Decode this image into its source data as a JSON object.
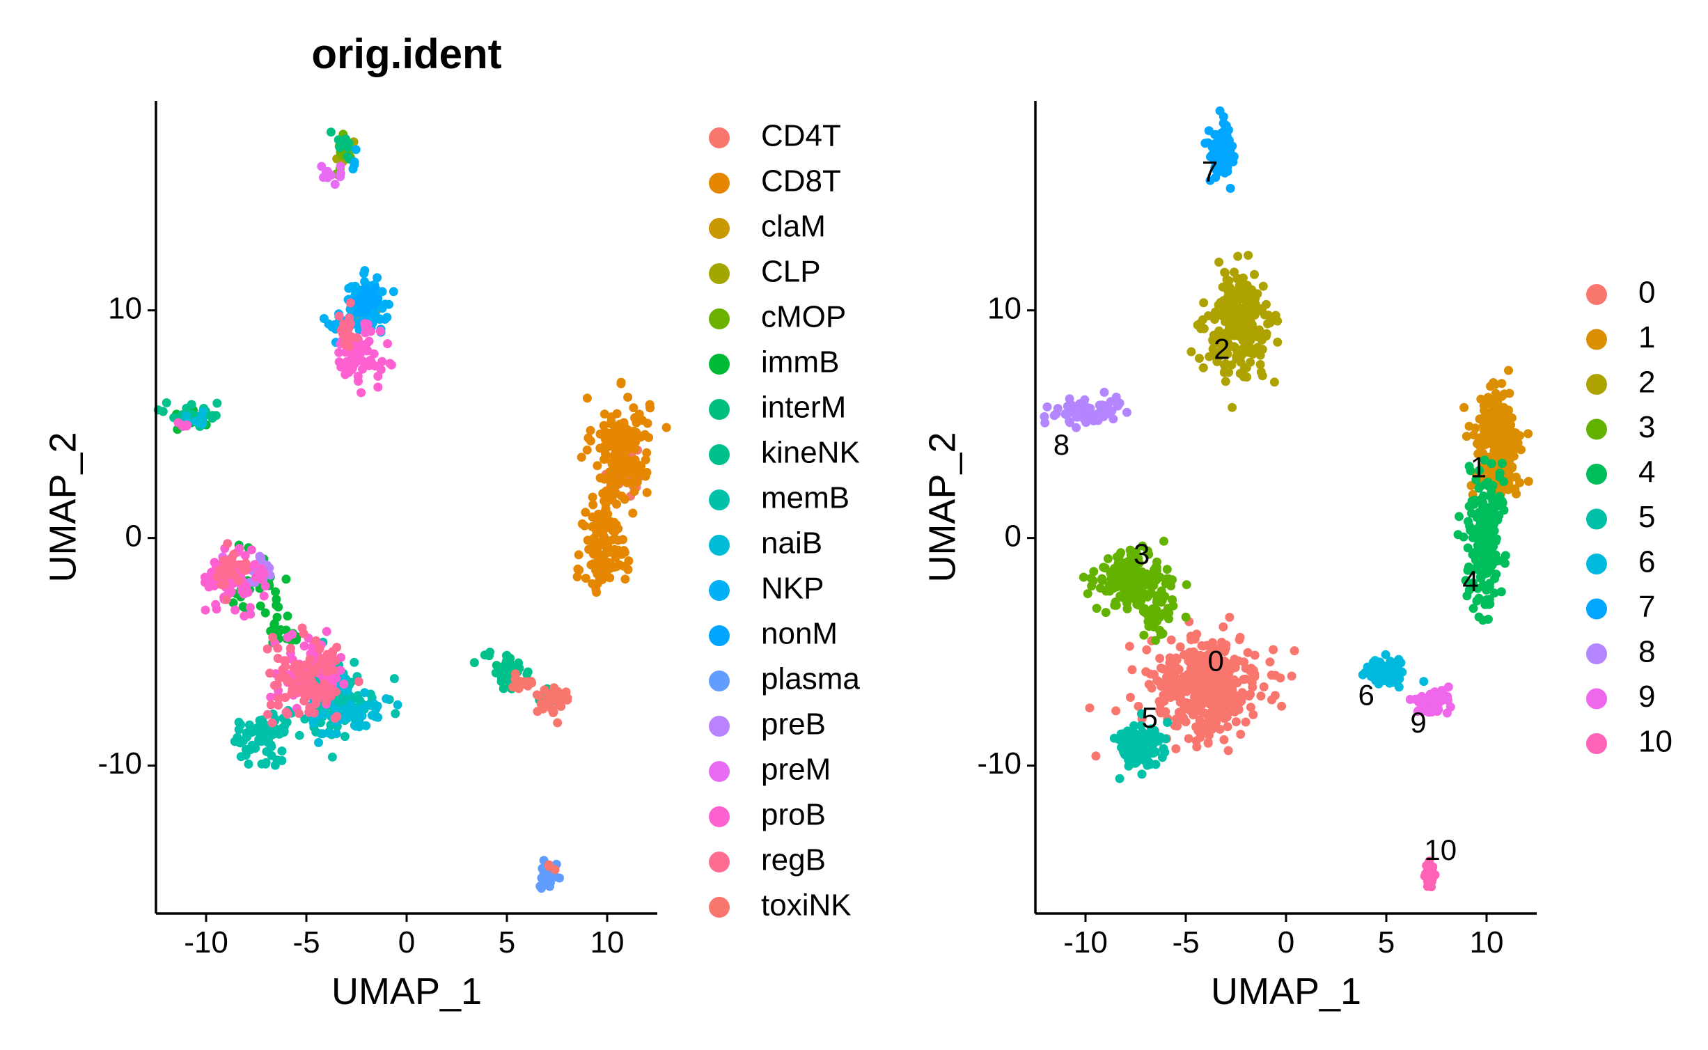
{
  "chart_data": [
    {
      "type": "scatter",
      "title": "orig.ident",
      "xlabel": "UMAP_1",
      "ylabel": "UMAP_2",
      "xlim": [
        -12.5,
        12.5
      ],
      "ylim": [
        -16.5,
        19.2
      ],
      "xticks": [
        "-10",
        "-5",
        "0",
        "5",
        "10"
      ],
      "yticks": [
        "-10",
        "0",
        "10"
      ],
      "legend": "right",
      "grid": false,
      "series": [
        {
          "name": "CD4T",
          "color": "#F8766D",
          "clusters": [
            [
              11,
              3,
              0.5,
              0.6,
              30
            ]
          ]
        },
        {
          "name": "CD8T",
          "color": "#E58700",
          "clusters": [
            [
              10.7,
              4.0,
              0.7,
              1.1,
              160
            ],
            [
              10.0,
              0.5,
              0.5,
              1.1,
              80
            ],
            [
              9.8,
              -1.2,
              0.5,
              0.6,
              50
            ]
          ]
        },
        {
          "name": "claM",
          "color": "#C99800",
          "clusters": [
            [
              -2.0,
              10.0,
              0.4,
              0.4,
              15
            ]
          ]
        },
        {
          "name": "CLP",
          "color": "#A3A500",
          "clusters": [
            [
              -3.0,
              17.0,
              0.3,
              0.3,
              8
            ]
          ]
        },
        {
          "name": "cMOP",
          "color": "#6BB100",
          "clusters": [
            [
              -3.2,
              16.8,
              0.3,
              0.5,
              10
            ]
          ]
        },
        {
          "name": "immB",
          "color": "#00BA38",
          "clusters": [
            [
              -7.5,
              -2.0,
              0.8,
              0.6,
              30
            ],
            [
              -6.0,
              -4.0,
              0.5,
              0.5,
              20
            ],
            [
              -10.5,
              5.3,
              0.6,
              0.3,
              10
            ]
          ]
        },
        {
          "name": "interM",
          "color": "#00BF7D",
          "clusters": [
            [
              -3.0,
              17.2,
              0.3,
              0.4,
              10
            ],
            [
              5.0,
              -5.6,
              0.3,
              0.2,
              6
            ]
          ]
        },
        {
          "name": "kineNK",
          "color": "#00C08B",
          "clusters": [
            [
              5.0,
              -5.9,
              0.6,
              0.4,
              40
            ],
            [
              7.0,
              -6.9,
              0.3,
              0.2,
              6
            ],
            [
              -10.5,
              5.4,
              0.8,
              0.3,
              25
            ]
          ]
        },
        {
          "name": "memB",
          "color": "#00C1AA",
          "clusters": [
            [
              -3.5,
              -7.0,
              1.0,
              0.8,
              110
            ],
            [
              -7.5,
              -9.0,
              0.6,
              0.5,
              50
            ],
            [
              -6.5,
              -8.2,
              0.5,
              0.4,
              30
            ]
          ]
        },
        {
          "name": "naiB",
          "color": "#00BCD8",
          "clusters": [
            [
              -3.0,
              -7.5,
              0.9,
              0.6,
              60
            ],
            [
              -10.5,
              5.2,
              0.4,
              0.2,
              10
            ]
          ]
        },
        {
          "name": "NKP",
          "color": "#00B0F6",
          "clusters": [
            [
              -2.0,
              10.2,
              0.6,
              0.6,
              100
            ],
            [
              -3.5,
              9.3,
              0.3,
              0.3,
              15
            ],
            [
              -2.6,
              16.5,
              0.2,
              0.2,
              4
            ]
          ]
        },
        {
          "name": "nonM",
          "color": "#00A5FF",
          "clusters": [
            [
              -2.0,
              10.5,
              0.4,
              0.3,
              30
            ]
          ]
        },
        {
          "name": "plasma",
          "color": "#619CFF",
          "clusters": [
            [
              7.1,
              -14.9,
              0.2,
              0.3,
              25
            ]
          ]
        },
        {
          "name": "preB",
          "color": "#B983FF",
          "clusters": [
            [
              -7.5,
              -1.5,
              0.5,
              0.4,
              20
            ]
          ]
        },
        {
          "name": "preM",
          "color": "#E76BF3",
          "clusters": [
            [
              -3.9,
              16.0,
              0.4,
              0.3,
              10
            ],
            [
              -9.0,
              -1.5,
              0.4,
              0.4,
              10
            ]
          ]
        },
        {
          "name": "proB",
          "color": "#FD61D1",
          "clusters": [
            [
              -2.5,
              8.0,
              0.6,
              0.6,
              70
            ],
            [
              -8.5,
              -1.8,
              0.7,
              0.6,
              80
            ],
            [
              -4.8,
              -5.8,
              0.8,
              0.7,
              90
            ],
            [
              -11.0,
              5.0,
              0.2,
              0.1,
              5
            ]
          ]
        },
        {
          "name": "regB",
          "color": "#FF6C91",
          "clusters": [
            [
              -5.0,
              -6.3,
              1.0,
              0.9,
              100
            ],
            [
              -8.8,
              -1.5,
              0.4,
              0.4,
              30
            ],
            [
              -3.0,
              9.0,
              0.3,
              0.4,
              20
            ]
          ]
        },
        {
          "name": "toxiNK",
          "color": "#F8766D",
          "clusters": [
            [
              7.3,
              -7.2,
              0.4,
              0.3,
              40
            ],
            [
              5.7,
              -6.3,
              0.4,
              0.2,
              15
            ],
            [
              7.2,
              -14.5,
              0.1,
              0.1,
              3
            ]
          ]
        }
      ]
    },
    {
      "type": "scatter",
      "title": "",
      "xlabel": "UMAP_1",
      "ylabel": "UMAP_2",
      "xlim": [
        -12.5,
        12.5
      ],
      "ylim": [
        -16.5,
        19.2
      ],
      "xticks": [
        "-10",
        "-5",
        "0",
        "5",
        "10"
      ],
      "yticks": [
        "-10",
        "0",
        "10"
      ],
      "legend": "right",
      "grid": false,
      "series": [
        {
          "name": "0",
          "color": "#F8766D",
          "label_at": [
            -3.5,
            -5.5
          ],
          "clusters": [
            [
              -4.0,
              -6.5,
              1.4,
              1.1,
              380
            ]
          ]
        },
        {
          "name": "1",
          "color": "#DB8E00",
          "label_at": [
            9.6,
            3.0
          ],
          "clusters": [
            [
              10.5,
              4.0,
              0.6,
              1.3,
              260
            ]
          ]
        },
        {
          "name": "2",
          "color": "#AEA200",
          "label_at": [
            -3.2,
            8.2
          ],
          "clusters": [
            [
              -2.3,
              9.3,
              0.8,
              1.1,
              240
            ]
          ]
        },
        {
          "name": "3",
          "color": "#64B200",
          "label_at": [
            -7.2,
            -0.8
          ],
          "clusters": [
            [
              -7.8,
              -1.8,
              0.9,
              0.6,
              160
            ],
            [
              -6.3,
              -3.3,
              0.5,
              0.5,
              40
            ]
          ]
        },
        {
          "name": "4",
          "color": "#00BD5C",
          "label_at": [
            9.2,
            -2.0
          ],
          "clusters": [
            [
              9.9,
              0.0,
              0.4,
              1.6,
              200
            ]
          ]
        },
        {
          "name": "5",
          "color": "#00C1A7",
          "label_at": [
            -6.8,
            -8.0
          ],
          "clusters": [
            [
              -7.3,
              -9.1,
              0.6,
              0.5,
              100
            ]
          ]
        },
        {
          "name": "6",
          "color": "#00BADE",
          "label_at": [
            4.0,
            -7.0
          ],
          "clusters": [
            [
              5.0,
              -5.9,
              0.5,
              0.3,
              60
            ]
          ]
        },
        {
          "name": "7",
          "color": "#00A6FF",
          "label_at": [
            -3.8,
            16.0
          ],
          "clusters": [
            [
              -3.2,
              17.0,
              0.3,
              0.7,
              80
            ]
          ]
        },
        {
          "name": "8",
          "color": "#B385FF",
          "label_at": [
            -11.2,
            4.0
          ],
          "clusters": [
            [
              -10.2,
              5.5,
              0.9,
              0.3,
              60
            ]
          ]
        },
        {
          "name": "9",
          "color": "#EF67EB",
          "label_at": [
            6.6,
            -8.2
          ],
          "clusters": [
            [
              7.3,
              -7.2,
              0.4,
              0.3,
              50
            ]
          ]
        },
        {
          "name": "10",
          "color": "#FF63B6",
          "label_at": [
            7.7,
            -13.8
          ],
          "clusters": [
            [
              7.1,
              -14.8,
              0.15,
              0.25,
              30
            ]
          ]
        }
      ]
    }
  ]
}
